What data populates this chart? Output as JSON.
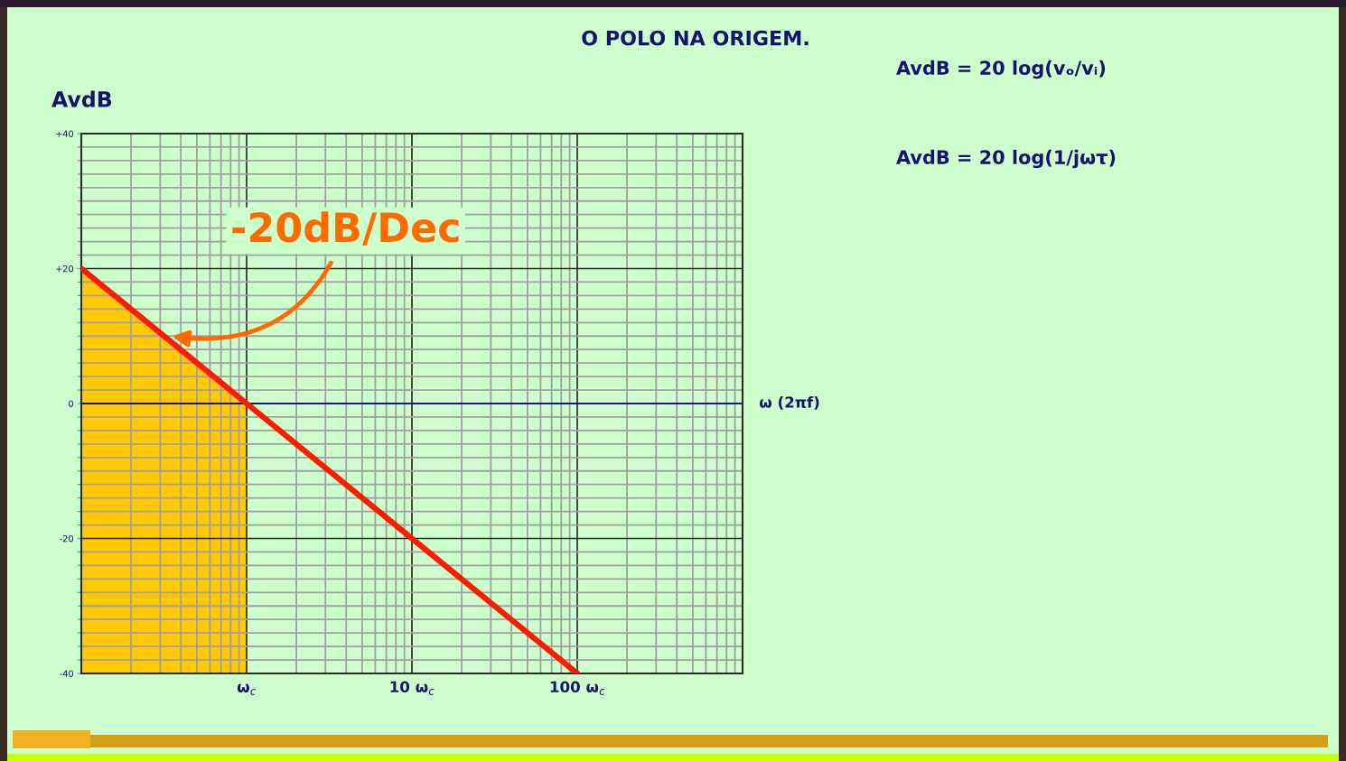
{
  "chart_data": {
    "type": "line",
    "title": "O POLO NA ORIGEM.",
    "xlabel": "ω (2πf)",
    "ylabel": "AvdB",
    "log": "x",
    "xlim": [
      0.1,
      1000
    ],
    "ylim": [
      -40,
      40
    ],
    "xticks": [
      {
        "value": 0.2,
        "label": null
      },
      {
        "value": 0.3,
        "label": null
      },
      {
        "value": 0.4,
        "label": null
      },
      {
        "value": 0.5,
        "label": null
      },
      {
        "value": 0.6,
        "label": null
      },
      {
        "value": 0.7,
        "label": null
      },
      {
        "value": 0.8,
        "label": null
      },
      {
        "value": 0.9,
        "label": null
      },
      {
        "value": 1,
        "label": "ω$_{c}$"
      },
      {
        "value": 2,
        "label": null
      },
      {
        "value": 3,
        "label": null
      },
      {
        "value": 4,
        "label": null
      },
      {
        "value": 5,
        "label": null
      },
      {
        "value": 6,
        "label": null
      },
      {
        "value": 7,
        "label": null
      },
      {
        "value": 8,
        "label": null
      },
      {
        "value": 9,
        "label": null
      },
      {
        "value": 10,
        "label": "10 ω$_{c}$"
      },
      {
        "value": 20,
        "label": null
      },
      {
        "value": 30,
        "label": null
      },
      {
        "value": 40,
        "label": null
      },
      {
        "value": 50,
        "label": null
      },
      {
        "value": 60,
        "label": null
      },
      {
        "value": 70,
        "label": null
      },
      {
        "value": 80,
        "label": null
      },
      {
        "value": 90,
        "label": null
      },
      {
        "value": 100,
        "label": "100 ω$_{c}$"
      },
      {
        "value": 200,
        "label": null
      },
      {
        "value": 300,
        "label": null
      },
      {
        "value": 400,
        "label": null
      },
      {
        "value": 500,
        "label": null
      },
      {
        "value": 600,
        "label": null
      },
      {
        "value": 700,
        "label": null
      },
      {
        "value": 800,
        "label": null
      },
      {
        "value": 900,
        "label": null
      }
    ],
    "yticks": [
      {
        "value": -40,
        "label": "-40"
      },
      {
        "value": -38,
        "label": null
      },
      {
        "value": -36,
        "label": null
      },
      {
        "value": -34,
        "label": null
      },
      {
        "value": -32,
        "label": null
      },
      {
        "value": -30,
        "label": null
      },
      {
        "value": -28,
        "label": null
      },
      {
        "value": -26,
        "label": null
      },
      {
        "value": -24,
        "label": null
      },
      {
        "value": -22,
        "label": null
      },
      {
        "value": -20,
        "label": "-20"
      },
      {
        "value": -18,
        "label": null
      },
      {
        "value": -16,
        "label": null
      },
      {
        "value": -14,
        "label": null
      },
      {
        "value": -12,
        "label": null
      },
      {
        "value": -10,
        "label": null
      },
      {
        "value": -8,
        "label": null
      },
      {
        "value": -6,
        "label": null
      },
      {
        "value": -4,
        "label": null
      },
      {
        "value": -2,
        "label": null
      },
      0,
      {
        "value": 2,
        "label": null
      },
      {
        "value": 4,
        "label": null
      },
      {
        "value": 6,
        "label": null
      },
      {
        "value": 8,
        "label": null
      },
      {
        "value": 10,
        "label": null
      },
      {
        "value": 12,
        "label": null
      },
      {
        "value": 14,
        "label": null
      },
      {
        "value": 16,
        "label": null
      },
      {
        "value": 18,
        "label": null
      },
      {
        "value": 20,
        "label": "+20"
      },
      {
        "value": 22,
        "label": null
      },
      {
        "value": 24,
        "label": null
      },
      {
        "value": 26,
        "label": null
      },
      {
        "value": 28,
        "label": null
      },
      {
        "value": 30,
        "label": null
      },
      {
        "value": 32,
        "label": null
      },
      {
        "value": 34,
        "label": null
      },
      {
        "value": 36,
        "label": null
      },
      {
        "value": 38,
        "label": null
      },
      {
        "value": 40,
        "label": "+40"
      }
    ],
    "grid": true,
    "series": [
      {
        "type": "area",
        "color": "#ffc800",
        "x": [
          0.1,
          0.1,
          1,
          1
        ],
        "values": [
          -40,
          20,
          0,
          -40
        ]
      },
      {
        "color": "#ff1a00",
        "x": [
          0.1,
          100
        ],
        "values": [
          20,
          -40
        ]
      }
    ],
    "ref_lines": [
      {
        "axis": "y",
        "value": 0,
        "color": "#1a1a80"
      }
    ],
    "annotations": [
      {
        "text": "-20dB/Dec",
        "x": 0.34,
        "y": 10
      },
      "AvdB = 20 log(vₒ/vᵢ)",
      "AvdB = 20 log(1/jωτ)"
    ]
  }
}
